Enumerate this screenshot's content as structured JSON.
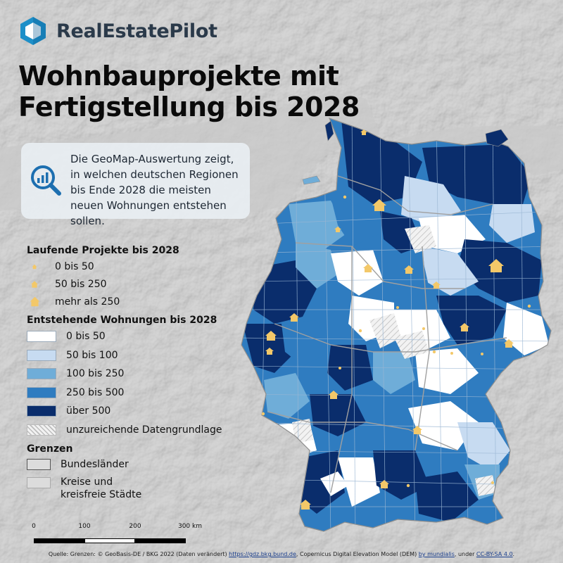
{
  "brand": {
    "name": "RealEstatePilot",
    "accent": "#1d8fc8"
  },
  "title": "Wohnbauprojekte mit Fertigstellung bis 2028",
  "info": {
    "icon": "analytics-magnifier-icon",
    "text": "Die GeoMap-Auswertung zeigt, in welchen deutschen Regionen bis Ende 2028 die meisten neuen Wohnungen entstehen sollen."
  },
  "legend": {
    "projects": {
      "title": "Laufende Projekte bis 2028",
      "icon": "house-icon",
      "items": [
        "0 bis 50",
        "50 bis 250",
        "mehr als 250"
      ]
    },
    "dwellings": {
      "title": "Entstehende Wohnungen bis 2028",
      "items": [
        {
          "label": "0 bis 50",
          "color": "#ffffff"
        },
        {
          "label": "50 bis 100",
          "color": "#c7dbf1"
        },
        {
          "label": "100 bis 250",
          "color": "#6fadd8"
        },
        {
          "label": "250 bis 500",
          "color": "#2f7cc0"
        },
        {
          "label": "über 500",
          "color": "#0a2d6c"
        },
        {
          "label": "unzureichende Datengrundlage",
          "color": "hatched"
        }
      ]
    },
    "boundaries": {
      "title": "Grenzen",
      "items": [
        "Bundesländer",
        "Kreise und\nkreisfreie Städte"
      ]
    }
  },
  "scale": {
    "labels": [
      "0",
      "100",
      "200",
      "300 km"
    ]
  },
  "source": {
    "prefix": "Quelle: Grenzen: © GeoBasis-DE / BKG 2022 (Daten verändert) ",
    "link1": "https://gdz.bkg.bund.de",
    "middle": ", Copernicus Digital Elevation Model (DEM) ",
    "link2": "by mundialis",
    "middle2": ", under ",
    "link3": "CC-BY-SA 4.0",
    "suffix": "."
  }
}
